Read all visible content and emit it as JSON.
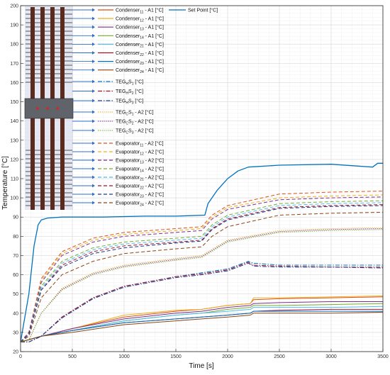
{
  "chart_data": {
    "type": "line",
    "xlabel": "Time [s]",
    "ylabel": "Temperature [°C]",
    "xlim": [
      0,
      3500
    ],
    "ylim": [
      20,
      200
    ],
    "xticks": [
      0,
      500,
      1000,
      1500,
      2000,
      2500,
      3000,
      3500
    ],
    "yticks": [
      20,
      30,
      40,
      50,
      60,
      70,
      80,
      90,
      100,
      110,
      120,
      130,
      140,
      150,
      160,
      170,
      180,
      190,
      200
    ],
    "grid": true,
    "legend_position": "top-left",
    "series": [
      {
        "label_main": "Condenser",
        "label_sub": "11",
        "label_suffix": " - A1 [°C]",
        "color": "#d95319",
        "dash": "solid",
        "x": [
          0,
          200,
          500,
          1000,
          1500,
          1750,
          2000,
          2220,
          2250,
          2500,
          3000,
          3500
        ],
        "y": [
          25,
          28,
          32,
          38,
          41,
          42,
          44,
          45,
          47,
          47.5,
          48,
          48.5
        ]
      },
      {
        "label_main": "Condenser",
        "label_sub": "12",
        "label_suffix": " - A1 [°C]",
        "color": "#edb120",
        "dash": "solid",
        "x": [
          0,
          200,
          500,
          1000,
          1500,
          1750,
          2000,
          2220,
          2250,
          2500,
          3000,
          3500
        ],
        "y": [
          25,
          28,
          32,
          39,
          41.5,
          42,
          44,
          45,
          48,
          48,
          48.5,
          49
        ]
      },
      {
        "label_main": "Condenser",
        "label_sub": "13",
        "label_suffix": " - A1 [°C]",
        "color": "#7e2f8e",
        "dash": "solid",
        "x": [
          0,
          200,
          500,
          1000,
          1500,
          1750,
          2000,
          2220,
          2250,
          2500,
          3000,
          3500
        ],
        "y": [
          25,
          28,
          32,
          37,
          40,
          41,
          43,
          44,
          45,
          45.5,
          46,
          46
        ]
      },
      {
        "label_main": "Condenser",
        "label_sub": "14",
        "label_suffix": " - A1 [°C]",
        "color": "#77ac30",
        "dash": "solid",
        "x": [
          0,
          200,
          500,
          1000,
          1500,
          1750,
          2000,
          2220,
          2250,
          2500,
          3000,
          3500
        ],
        "y": [
          25,
          28,
          31,
          36,
          39,
          40,
          42,
          43,
          44,
          44,
          44.5,
          45
        ]
      },
      {
        "label_main": "Condenser",
        "label_sub": "21",
        "label_suffix": " - A1 [°C]",
        "color": "#4dbeee",
        "dash": "solid",
        "x": [
          0,
          200,
          500,
          1000,
          1500,
          1750,
          2000,
          2220,
          2250,
          2500,
          3000,
          3500
        ],
        "y": [
          25,
          28,
          31,
          36,
          39,
          40,
          41,
          42,
          43,
          43,
          43,
          43.5
        ]
      },
      {
        "label_main": "Condenser",
        "label_sub": "22",
        "label_suffix": " - A1 [°C]",
        "color": "#a2142f",
        "dash": "solid",
        "x": [
          0,
          200,
          500,
          1000,
          1500,
          1750,
          2000,
          2220,
          2250,
          2500,
          3000,
          3500
        ],
        "y": [
          25,
          28,
          31,
          35,
          37,
          38,
          39,
          40,
          41,
          41.5,
          42,
          42
        ]
      },
      {
        "label_main": "Condenser",
        "label_sub": "23",
        "label_suffix": " - A1 [°C]",
        "color": "#0072bd",
        "dash": "solid",
        "x": [
          0,
          200,
          500,
          1000,
          1500,
          1750,
          2000,
          2220,
          2250,
          2500,
          3000,
          3500
        ],
        "y": [
          25,
          28,
          31,
          35,
          37,
          38,
          39,
          40,
          41,
          41,
          41,
          41
        ]
      },
      {
        "label_main": "Condenser",
        "label_sub": "24",
        "label_suffix": " - A1 [°C]",
        "color": "#8b4513",
        "dash": "solid",
        "x": [
          0,
          200,
          500,
          1000,
          1500,
          1750,
          2000,
          2220,
          2250,
          2500,
          3000,
          3500
        ],
        "y": [
          25,
          28,
          30,
          34,
          36,
          37,
          38,
          39,
          40,
          40,
          40,
          40.5
        ]
      },
      {
        "label_main": "TEG",
        "label_sub": "H",
        "label_suffix": "S",
        "label_sub2": "1",
        "label_suffix2": " [°C]",
        "color": "#0072bd",
        "dash": "dashdot",
        "x": [
          0,
          80,
          200,
          400,
          700,
          1000,
          1500,
          1750,
          2000,
          2200,
          2250,
          2500,
          3000,
          3500
        ],
        "y": [
          25,
          25,
          28,
          38,
          48,
          54,
          59,
          61,
          63,
          67,
          66,
          65,
          65,
          65
        ]
      },
      {
        "label_main": "TEG",
        "label_sub": "H",
        "label_suffix": "S",
        "label_sub2": "2",
        "label_suffix2": " [°C]",
        "color": "#a2142f",
        "dash": "dashdot",
        "x": [
          0,
          80,
          200,
          400,
          700,
          1000,
          1500,
          1750,
          2000,
          2200,
          2250,
          2500,
          3000,
          3500
        ],
        "y": [
          25,
          25,
          28,
          38,
          48,
          54,
          59,
          60.5,
          62.5,
          66.5,
          65,
          64.5,
          64,
          64
        ]
      },
      {
        "label_main": "TEG",
        "label_sub": "H",
        "label_suffix": "S",
        "label_sub2": "3",
        "label_suffix2": " [°C]",
        "color": "#1f3a8a",
        "dash": "dashdot",
        "x": [
          0,
          80,
          200,
          400,
          700,
          1000,
          1500,
          1750,
          2000,
          2200,
          2250,
          2500,
          3000,
          3500
        ],
        "y": [
          25,
          25,
          28,
          37.5,
          47.5,
          53.5,
          58.5,
          60,
          62,
          66,
          64.5,
          64,
          64,
          63.5
        ]
      },
      {
        "label_main": "TEG",
        "label_sub": "C",
        "label_suffix": "S",
        "label_sub2": "1",
        "label_suffix2": " - A2 [°C]",
        "color": "#edb120",
        "dash": "dotted",
        "x": [
          0,
          80,
          200,
          400,
          700,
          1000,
          1500,
          1750,
          2000,
          2500,
          3000,
          3500
        ],
        "y": [
          25,
          26,
          40,
          53,
          61,
          65,
          68.5,
          70,
          78,
          83,
          84,
          84.5
        ]
      },
      {
        "label_main": "TEG",
        "label_sub": "C",
        "label_suffix": "S",
        "label_sub2": "2",
        "label_suffix2": " - A2 [°C]",
        "color": "#7e2f8e",
        "dash": "dotted",
        "x": [
          0,
          80,
          200,
          400,
          700,
          1000,
          1500,
          1750,
          2000,
          2500,
          3000,
          3500
        ],
        "y": [
          25,
          26,
          40,
          52.5,
          60.5,
          64.5,
          68,
          69.5,
          77.5,
          82.5,
          83.5,
          84
        ]
      },
      {
        "label_main": "TEG",
        "label_sub": "C",
        "label_suffix": "S",
        "label_sub2": "3",
        "label_suffix2": " - A2 [°C]",
        "color": "#77ac30",
        "dash": "dotted",
        "x": [
          0,
          80,
          200,
          400,
          700,
          1000,
          1500,
          1750,
          2000,
          2500,
          3000,
          3500
        ],
        "y": [
          25,
          26,
          40,
          52,
          60,
          64,
          67.5,
          69,
          77,
          82,
          83,
          83.5
        ]
      },
      {
        "label_main": "Evaporator",
        "label_sub": "11",
        "label_suffix": " - A2 [°C]",
        "color": "#d95319",
        "dash": "dashed",
        "x": [
          0,
          80,
          200,
          400,
          700,
          1000,
          1500,
          1750,
          1850,
          2000,
          2500,
          3000,
          3500
        ],
        "y": [
          25,
          30,
          58,
          72,
          79,
          82,
          84,
          85,
          91,
          96,
          102,
          103,
          103.5
        ]
      },
      {
        "label_main": "Evaporator",
        "label_sub": "12",
        "label_suffix": " - A2 [°C]",
        "color": "#edb120",
        "dash": "dashed",
        "x": [
          0,
          80,
          200,
          400,
          700,
          1000,
          1500,
          1750,
          1850,
          2000,
          2500,
          3000,
          3500
        ],
        "y": [
          25,
          30,
          57,
          71,
          78,
          81,
          83,
          84,
          90,
          95,
          100,
          101,
          101.5
        ]
      },
      {
        "label_main": "Evaporator",
        "label_sub": "13",
        "label_suffix": " - A2 [°C]",
        "color": "#7e2f8e",
        "dash": "dashed",
        "x": [
          0,
          80,
          200,
          400,
          700,
          1000,
          1500,
          1750,
          1850,
          2000,
          2500,
          3000,
          3500
        ],
        "y": [
          25,
          30,
          56,
          70,
          77,
          80,
          82,
          83,
          89,
          94,
          99,
          100,
          100.5
        ]
      },
      {
        "label_main": "Evaporator",
        "label_sub": "14",
        "label_suffix": " - A2 [°C]",
        "color": "#77ac30",
        "dash": "dashed",
        "x": [
          0,
          80,
          200,
          400,
          700,
          1000,
          1500,
          1750,
          1850,
          2000,
          2500,
          3000,
          3500
        ],
        "y": [
          25,
          29,
          54,
          67,
          74,
          77,
          79,
          80,
          86,
          91,
          97,
          98,
          98.5
        ]
      },
      {
        "label_main": "Evaporator",
        "label_sub": "21",
        "label_suffix": " - A2 [°C]",
        "color": "#4dbeee",
        "dash": "dashed",
        "x": [
          0,
          80,
          200,
          400,
          700,
          1000,
          1500,
          1750,
          1850,
          2000,
          2500,
          3000,
          3500
        ],
        "y": [
          25,
          29,
          53,
          66,
          73,
          76,
          78,
          79,
          85,
          90,
          96,
          97,
          97.5
        ]
      },
      {
        "label_main": "Evaporator",
        "label_sub": "22",
        "label_suffix": " - A2 [°C]",
        "color": "#a2142f",
        "dash": "dashed",
        "x": [
          0,
          80,
          200,
          400,
          700,
          1000,
          1500,
          1750,
          1850,
          2000,
          2500,
          3000,
          3500
        ],
        "y": [
          25,
          29,
          52,
          65,
          72,
          75,
          77,
          78,
          84,
          89,
          95,
          96,
          96.5
        ]
      },
      {
        "label_main": "Evaporator",
        "label_sub": "23",
        "label_suffix": " - A2 [°C]",
        "color": "#1f3a8a",
        "dash": "dashed",
        "x": [
          0,
          80,
          200,
          400,
          700,
          1000,
          1500,
          1750,
          1850,
          2000,
          2500,
          3000,
          3500
        ],
        "y": [
          25,
          29,
          52,
          64,
          71,
          74,
          76.5,
          77.5,
          83.5,
          88.5,
          94.5,
          95.5,
          96
        ]
      },
      {
        "label_main": "Evaporator",
        "label_sub": "24",
        "label_suffix": " - A2 [°C]",
        "color": "#8b4513",
        "dash": "dashed",
        "x": [
          0,
          80,
          200,
          400,
          700,
          1000,
          1500,
          1750,
          1850,
          2000,
          2500,
          3000,
          3500
        ],
        "y": [
          25,
          28,
          48,
          60,
          67,
          71,
          73.5,
          74.5,
          80,
          85,
          91,
          92,
          92.5
        ]
      },
      {
        "label_main": "Set Point [°C]",
        "color": "#0072bd",
        "dash": "solid",
        "x": [
          0,
          80,
          130,
          170,
          200,
          260,
          400,
          800,
          1200,
          1500,
          1780,
          1810,
          1900,
          2000,
          2100,
          2200,
          2500,
          3000,
          3400,
          3450,
          3500
        ],
        "y": [
          25,
          50,
          75,
          86,
          88.5,
          89.5,
          90,
          90,
          90.5,
          90.5,
          91,
          97,
          104,
          110,
          114,
          116,
          117,
          117.5,
          116,
          118,
          118
        ]
      }
    ]
  }
}
